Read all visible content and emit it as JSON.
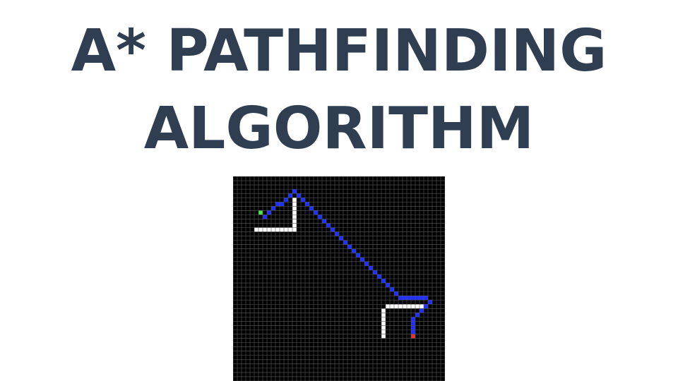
{
  "title": {
    "line1": "A* PATHFINDING",
    "line2": "ALGORITHM"
  },
  "grid": {
    "columns": 50,
    "rows": 48,
    "colors": {
      "background": "#000000",
      "gridline": "#5a5a5a",
      "wall": "#ffffff",
      "path": "#1f2fff",
      "start": "#46e84a",
      "end": "#e8322a"
    },
    "start_cell": [
      6,
      8
    ],
    "end_cell": [
      42,
      37
    ],
    "walls": [
      [
        5,
        12
      ],
      [
        6,
        12
      ],
      [
        7,
        12
      ],
      [
        8,
        12
      ],
      [
        9,
        12
      ],
      [
        10,
        12
      ],
      [
        11,
        12
      ],
      [
        12,
        12
      ],
      [
        13,
        12
      ],
      [
        14,
        12
      ],
      [
        14,
        5
      ],
      [
        14,
        6
      ],
      [
        14,
        7
      ],
      [
        14,
        8
      ],
      [
        14,
        9
      ],
      [
        14,
        10
      ],
      [
        14,
        11
      ],
      [
        35,
        31
      ],
      [
        35,
        32
      ],
      [
        35,
        33
      ],
      [
        35,
        34
      ],
      [
        35,
        35
      ],
      [
        35,
        36
      ],
      [
        35,
        37
      ],
      [
        36,
        30
      ],
      [
        37,
        30
      ],
      [
        38,
        30
      ],
      [
        39,
        30
      ],
      [
        40,
        30
      ],
      [
        41,
        30
      ],
      [
        42,
        30
      ],
      [
        43,
        30
      ],
      [
        44,
        30
      ]
    ],
    "path": [
      [
        7,
        9
      ],
      [
        8,
        8
      ],
      [
        9,
        7
      ],
      [
        10,
        6
      ],
      [
        11,
        6
      ],
      [
        12,
        5
      ],
      [
        13,
        4
      ],
      [
        14,
        3
      ],
      [
        15,
        4
      ],
      [
        16,
        5
      ],
      [
        17,
        6
      ],
      [
        18,
        7
      ],
      [
        19,
        8
      ],
      [
        20,
        9
      ],
      [
        21,
        10
      ],
      [
        22,
        11
      ],
      [
        23,
        12
      ],
      [
        24,
        13
      ],
      [
        25,
        14
      ],
      [
        26,
        15
      ],
      [
        27,
        16
      ],
      [
        28,
        17
      ],
      [
        29,
        18
      ],
      [
        30,
        19
      ],
      [
        31,
        20
      ],
      [
        32,
        21
      ],
      [
        33,
        22
      ],
      [
        34,
        23
      ],
      [
        35,
        24
      ],
      [
        36,
        25
      ],
      [
        37,
        26
      ],
      [
        38,
        27
      ],
      [
        39,
        28
      ],
      [
        40,
        28
      ],
      [
        41,
        28
      ],
      [
        42,
        28
      ],
      [
        43,
        28
      ],
      [
        44,
        28
      ],
      [
        45,
        28
      ],
      [
        46,
        29
      ],
      [
        45,
        30
      ],
      [
        44,
        31
      ],
      [
        43,
        32
      ],
      [
        42,
        33
      ],
      [
        42,
        34
      ],
      [
        42,
        35
      ],
      [
        42,
        36
      ]
    ]
  }
}
